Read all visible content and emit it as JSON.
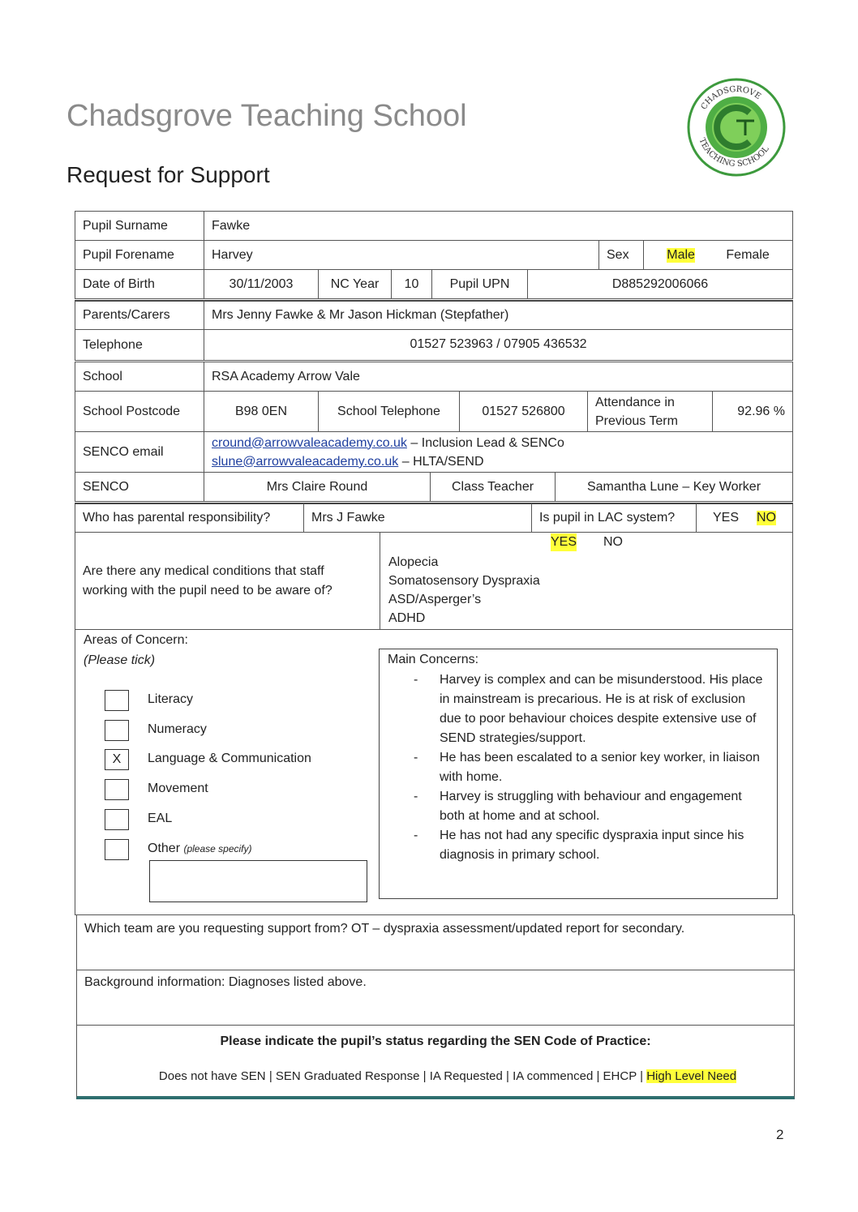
{
  "header": {
    "school_name": "Chadsgrove Teaching School",
    "form_title": "Request for Support",
    "logo_text": "CHADSGROVE TEACHING SCHOOL TSA"
  },
  "pupil": {
    "surname_label": "Pupil Surname",
    "surname": "Fawke",
    "forename_label": "Pupil Forename",
    "forename": "Harvey",
    "sex_label": "Sex",
    "sex_male": "Male",
    "sex_female": "Female",
    "sex_selected": "Male",
    "dob_label": "Date of Birth",
    "dob": "30/11/2003",
    "nc_year_label": "NC Year",
    "nc_year": "10",
    "upn_label": "Pupil UPN",
    "upn": "D885292006066",
    "parents_label": "Parents/Carers",
    "parents": "Mrs Jenny Fawke & Mr Jason Hickman (Stepfather)",
    "telephone_label": "Telephone",
    "telephone": "01527 523963 / 07905 436532",
    "school_label": "School",
    "school": "RSA Academy Arrow Vale",
    "postcode_label": "School Postcode",
    "postcode": "B98 0EN",
    "school_tel_label": "School Telephone",
    "school_tel": "01527 526800",
    "attendance_label_1": "Attendance in",
    "attendance_label_2": "Previous Term",
    "attendance": "92.96 %",
    "senco_email_label": "SENCO email",
    "senco_email_1": "cround@arrowvaleacademy.co.uk",
    "senco_email_1_role": " – Inclusion Lead & SENCo",
    "senco_email_2": "slune@arrowvaleacademy.co.uk",
    "senco_email_2_role": " – HLTA/SEND",
    "senco_label": "SENCO",
    "senco": "Mrs Claire Round",
    "class_teacher_label": "Class Teacher",
    "class_teacher": "Samantha Lune – Key Worker",
    "parental_resp_label": "Who has parental responsibility?",
    "parental_resp": "Mrs J Fawke",
    "lac_label": "Is pupil in LAC system?",
    "lac_yes": "YES",
    "lac_no": "NO",
    "lac_selected": "NO",
    "medical_label": "Are there any medical conditions that staff working with the pupil need to be aware of?",
    "medical_yes": "YES",
    "medical_no": "NO",
    "medical_selected": "YES",
    "conditions": [
      "Alopecia",
      "Somatosensory Dyspraxia",
      "ASD/Asperger’s",
      "ADHD"
    ]
  },
  "concerns": {
    "title": "Areas of Concern:",
    "subtitle": "(Please tick)",
    "items": [
      {
        "label": "Literacy",
        "checked": ""
      },
      {
        "label": "Numeracy",
        "checked": ""
      },
      {
        "label": "Language & Communication",
        "checked": "X"
      },
      {
        "label": "Movement",
        "checked": ""
      },
      {
        "label": "EAL",
        "checked": ""
      },
      {
        "label": "Other",
        "checked": ""
      }
    ],
    "other_note": "(please specify)",
    "other_value": "",
    "main_title": "Main Concerns:",
    "main": [
      "Harvey is complex and can be misunderstood. His place in mainstream is precarious. He is at risk of exclusion due to poor behaviour choices despite extensive use of SEND strategies/support.",
      "He has been escalated to a senior key worker, in liaison with home.",
      "Harvey is struggling with behaviour and engagement both at home and at school.",
      "He has not had any specific dyspraxia input since his diagnosis in primary school."
    ]
  },
  "team": "Which team are you requesting support from? OT – dyspraxia assessment/updated report for secondary.",
  "background": "Background information: Diagnoses listed above.",
  "sen": {
    "title": "Please indicate the pupil’s status regarding the SEN Code of Practice:",
    "options": [
      "Does not have SEN",
      "SEN Graduated Response",
      "IA Requested",
      "IA commenced",
      "EHCP",
      "High Level Need"
    ],
    "selected": "High Level Need",
    "separator": "|"
  },
  "page_number": "2",
  "colors": {
    "highlight": "#ffff3a",
    "logo_green": "#3d9a3d",
    "link": "#1f3f9f",
    "bottom_rule": "#2f6f6f"
  }
}
